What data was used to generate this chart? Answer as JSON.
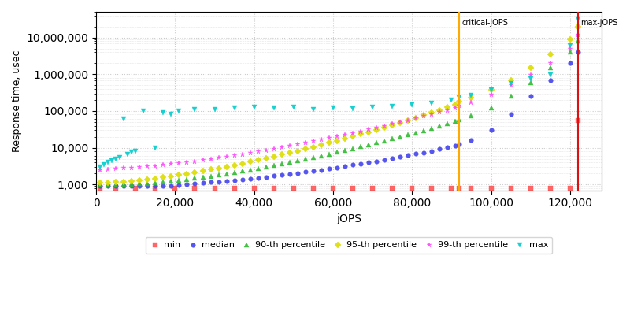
{
  "xlabel": "jOPS",
  "ylabel": "Response time, usec",
  "critical_jops": 92000,
  "max_jops": 122000,
  "critical_label": "critical-jOPS",
  "max_label": "max-jOPS",
  "ylim_bottom": 700,
  "ylim_top": 50000000,
  "xlim_left": 0,
  "xlim_right": 128000,
  "series": {
    "min": {
      "color": "#ff5555",
      "marker": "s",
      "markersize": 4,
      "label": "min",
      "x": [
        1000,
        5000,
        10000,
        15000,
        20000,
        25000,
        30000,
        35000,
        40000,
        45000,
        50000,
        55000,
        60000,
        65000,
        70000,
        75000,
        80000,
        85000,
        90000,
        92000,
        95000,
        100000,
        105000,
        110000,
        115000,
        120000,
        122000
      ],
      "y": [
        800,
        800,
        800,
        800,
        800,
        800,
        800,
        800,
        800,
        800,
        800,
        800,
        800,
        800,
        800,
        800,
        800,
        800,
        800,
        800,
        800,
        800,
        800,
        800,
        800,
        800,
        55000
      ]
    },
    "median": {
      "color": "#4444ee",
      "marker": "o",
      "markersize": 4,
      "label": "median",
      "x": [
        1000,
        3000,
        5000,
        7000,
        9000,
        11000,
        13000,
        15000,
        17000,
        19000,
        21000,
        23000,
        25000,
        27000,
        29000,
        31000,
        33000,
        35000,
        37000,
        39000,
        41000,
        43000,
        45000,
        47000,
        49000,
        51000,
        53000,
        55000,
        57000,
        59000,
        61000,
        63000,
        65000,
        67000,
        69000,
        71000,
        73000,
        75000,
        77000,
        79000,
        81000,
        83000,
        85000,
        87000,
        89000,
        91000,
        92000,
        95000,
        100000,
        105000,
        110000,
        115000,
        120000,
        122000
      ],
      "y": [
        900,
        900,
        900,
        900,
        900,
        900,
        900,
        900,
        900,
        920,
        960,
        1000,
        1050,
        1100,
        1150,
        1200,
        1260,
        1320,
        1390,
        1460,
        1540,
        1620,
        1710,
        1810,
        1920,
        2050,
        2190,
        2340,
        2510,
        2700,
        2910,
        3140,
        3400,
        3680,
        3990,
        4340,
        4720,
        5150,
        5630,
        6170,
        6780,
        7470,
        8250,
        9130,
        10100,
        11200,
        12500,
        16000,
        30000,
        80000,
        250000,
        700000,
        2000000,
        4000000
      ]
    },
    "p90": {
      "color": "#33bb33",
      "marker": "^",
      "markersize": 5,
      "label": "90-th percentile",
      "x": [
        1000,
        3000,
        5000,
        7000,
        9000,
        11000,
        13000,
        15000,
        17000,
        19000,
        21000,
        23000,
        25000,
        27000,
        29000,
        31000,
        33000,
        35000,
        37000,
        39000,
        41000,
        43000,
        45000,
        47000,
        49000,
        51000,
        53000,
        55000,
        57000,
        59000,
        61000,
        63000,
        65000,
        67000,
        69000,
        71000,
        73000,
        75000,
        77000,
        79000,
        81000,
        83000,
        85000,
        87000,
        89000,
        91000,
        92000,
        95000,
        100000,
        105000,
        110000,
        115000,
        120000,
        122000
      ],
      "y": [
        950,
        960,
        970,
        990,
        1010,
        1040,
        1080,
        1120,
        1170,
        1230,
        1300,
        1380,
        1470,
        1570,
        1680,
        1810,
        1960,
        2120,
        2300,
        2500,
        2730,
        2990,
        3280,
        3610,
        3980,
        4400,
        4870,
        5400,
        6010,
        6700,
        7500,
        8420,
        9460,
        10640,
        12000,
        13550,
        15330,
        17380,
        19750,
        22480,
        25650,
        29340,
        33620,
        38600,
        44450,
        51260,
        59000,
        75000,
        120000,
        250000,
        600000,
        1500000,
        4000000,
        8000000
      ]
    },
    "p95": {
      "color": "#dddd00",
      "marker": "D",
      "markersize": 4,
      "label": "95-th percentile",
      "x": [
        1000,
        3000,
        5000,
        7000,
        9000,
        11000,
        13000,
        15000,
        17000,
        19000,
        21000,
        23000,
        25000,
        27000,
        29000,
        31000,
        33000,
        35000,
        37000,
        39000,
        41000,
        43000,
        45000,
        47000,
        49000,
        51000,
        53000,
        55000,
        57000,
        59000,
        61000,
        63000,
        65000,
        67000,
        69000,
        71000,
        73000,
        75000,
        77000,
        79000,
        81000,
        83000,
        85000,
        87000,
        89000,
        91000,
        92000,
        95000,
        100000,
        105000,
        110000,
        115000,
        120000,
        122000
      ],
      "y": [
        1100,
        1130,
        1160,
        1200,
        1250,
        1310,
        1380,
        1460,
        1560,
        1670,
        1800,
        1950,
        2120,
        2310,
        2530,
        2780,
        3060,
        3380,
        3740,
        4150,
        4620,
        5160,
        5780,
        6490,
        7300,
        8230,
        9290,
        10510,
        11930,
        13580,
        15490,
        17710,
        20290,
        23290,
        26790,
        30880,
        35660,
        41280,
        47920,
        55780,
        65130,
        76280,
        89650,
        105700,
        125000,
        148000,
        176000,
        230000,
        380000,
        700000,
        1500000,
        3500000,
        9000000,
        20000000
      ]
    },
    "p99": {
      "color": "#ff44ff",
      "marker": "*",
      "markersize": 5,
      "label": "99-th percentile",
      "x": [
        1000,
        3000,
        5000,
        7000,
        9000,
        11000,
        13000,
        15000,
        17000,
        19000,
        21000,
        23000,
        25000,
        27000,
        29000,
        31000,
        33000,
        35000,
        37000,
        39000,
        41000,
        43000,
        45000,
        47000,
        49000,
        51000,
        53000,
        55000,
        57000,
        59000,
        61000,
        63000,
        65000,
        67000,
        69000,
        71000,
        73000,
        75000,
        77000,
        79000,
        81000,
        83000,
        85000,
        87000,
        89000,
        91000,
        92000,
        95000,
        100000,
        105000,
        110000,
        115000,
        120000,
        122000
      ],
      "y": [
        2500,
        2600,
        2700,
        2800,
        2900,
        3000,
        3100,
        3200,
        3400,
        3600,
        3800,
        4000,
        4300,
        4600,
        4900,
        5300,
        5700,
        6200,
        6700,
        7300,
        7900,
        8600,
        9400,
        10300,
        11300,
        12400,
        13700,
        15100,
        16700,
        18500,
        20500,
        22800,
        25400,
        28300,
        31600,
        35400,
        39700,
        44600,
        50100,
        56500,
        63900,
        72500,
        82500,
        94000,
        107000,
        122000,
        140000,
        175000,
        280000,
        500000,
        950000,
        2000000,
        5000000,
        12000000
      ]
    },
    "max": {
      "color": "#00cccc",
      "marker": "v",
      "markersize": 5,
      "label": "max",
      "x": [
        1000,
        2000,
        3000,
        4000,
        5000,
        6000,
        7000,
        8000,
        9000,
        10000,
        12000,
        15000,
        17000,
        19000,
        21000,
        25000,
        30000,
        35000,
        40000,
        45000,
        50000,
        55000,
        60000,
        65000,
        70000,
        75000,
        80000,
        85000,
        90000,
        92000,
        95000,
        100000,
        105000,
        110000,
        115000,
        120000,
        122000
      ],
      "y": [
        3000,
        3500,
        4000,
        4500,
        5000,
        5500,
        60000,
        6500,
        7500,
        8000,
        100000,
        10000,
        90000,
        80000,
        100000,
        110000,
        110000,
        120000,
        130000,
        120000,
        130000,
        110000,
        120000,
        115000,
        125000,
        135000,
        145000,
        165000,
        200000,
        230000,
        270000,
        380000,
        550000,
        750000,
        950000,
        6000000,
        32000000
      ]
    }
  },
  "background_color": "#ffffff",
  "grid_color": "#cccccc",
  "critical_color": "#ffaa00",
  "max_color": "#dd1111"
}
